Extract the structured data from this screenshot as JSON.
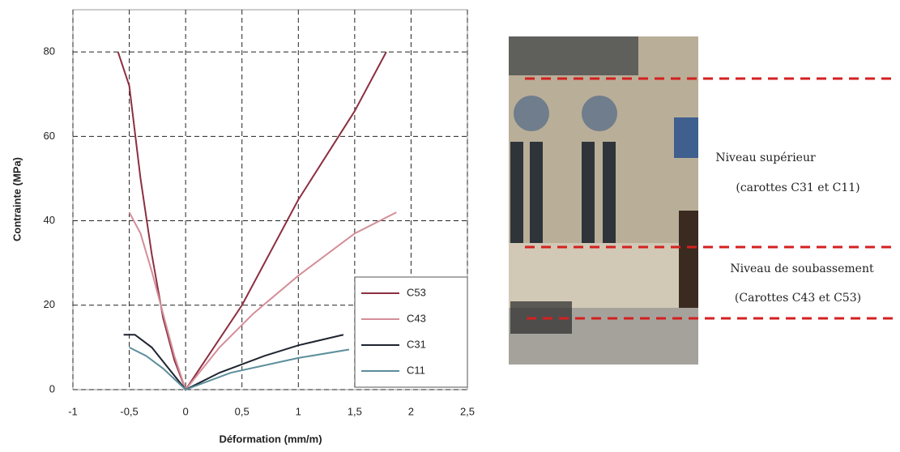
{
  "chart_data": {
    "type": "line",
    "xlabel": "Déformation (mm/m)",
    "ylabel": "Contrainte (MPa)",
    "xlim": [
      -1,
      2.5
    ],
    "ylim": [
      0,
      90
    ],
    "xticks": [
      -1,
      {
        "value": -0.5,
        "label": "-0,5"
      },
      0,
      {
        "value": 0.5,
        "label": "0,5"
      },
      1,
      {
        "value": 1.5,
        "label": "1,5"
      },
      2,
      {
        "value": 2.5,
        "label": "2,5"
      }
    ],
    "yticks": [
      0,
      20,
      40,
      60,
      80
    ],
    "grid": true,
    "legend": "lower right",
    "series": [
      {
        "name": "C53",
        "color": "#8c2f40",
        "x": [
          -0.6,
          -0.5,
          -0.4,
          -0.3,
          -0.2,
          -0.1,
          0,
          0.25,
          0.5,
          1,
          1.5,
          1.78
        ],
        "values": [
          80,
          72,
          50,
          32,
          17,
          7,
          0,
          10,
          20,
          45,
          66,
          80
        ]
      },
      {
        "name": "C43",
        "color": "#d58d99",
        "x": [
          -0.5,
          -0.4,
          -0.3,
          -0.2,
          -0.1,
          0,
          0.3,
          0.6,
          1,
          1.5,
          1.87
        ],
        "values": [
          42,
          37,
          28,
          18,
          8,
          0,
          10,
          18,
          27,
          37,
          42
        ]
      },
      {
        "name": "C31",
        "color": "#1e2430",
        "x": [
          -0.55,
          -0.45,
          -0.3,
          -0.15,
          0,
          0.3,
          0.7,
          1,
          1.4
        ],
        "values": [
          13,
          13,
          10,
          5,
          0,
          4,
          8,
          10.5,
          13
        ]
      },
      {
        "name": "C11",
        "color": "#5b8e9b",
        "x": [
          -0.5,
          -0.35,
          -0.2,
          0,
          0.4,
          1,
          1.45
        ],
        "values": [
          10,
          8,
          5,
          0,
          4,
          7.5,
          9.5
        ]
      }
    ],
    "annotations": [
      "Niveau supérieur",
      "(carottes C31 et C11)",
      "Niveau de soubassement",
      "(Carottes C43 et C53)"
    ]
  }
}
